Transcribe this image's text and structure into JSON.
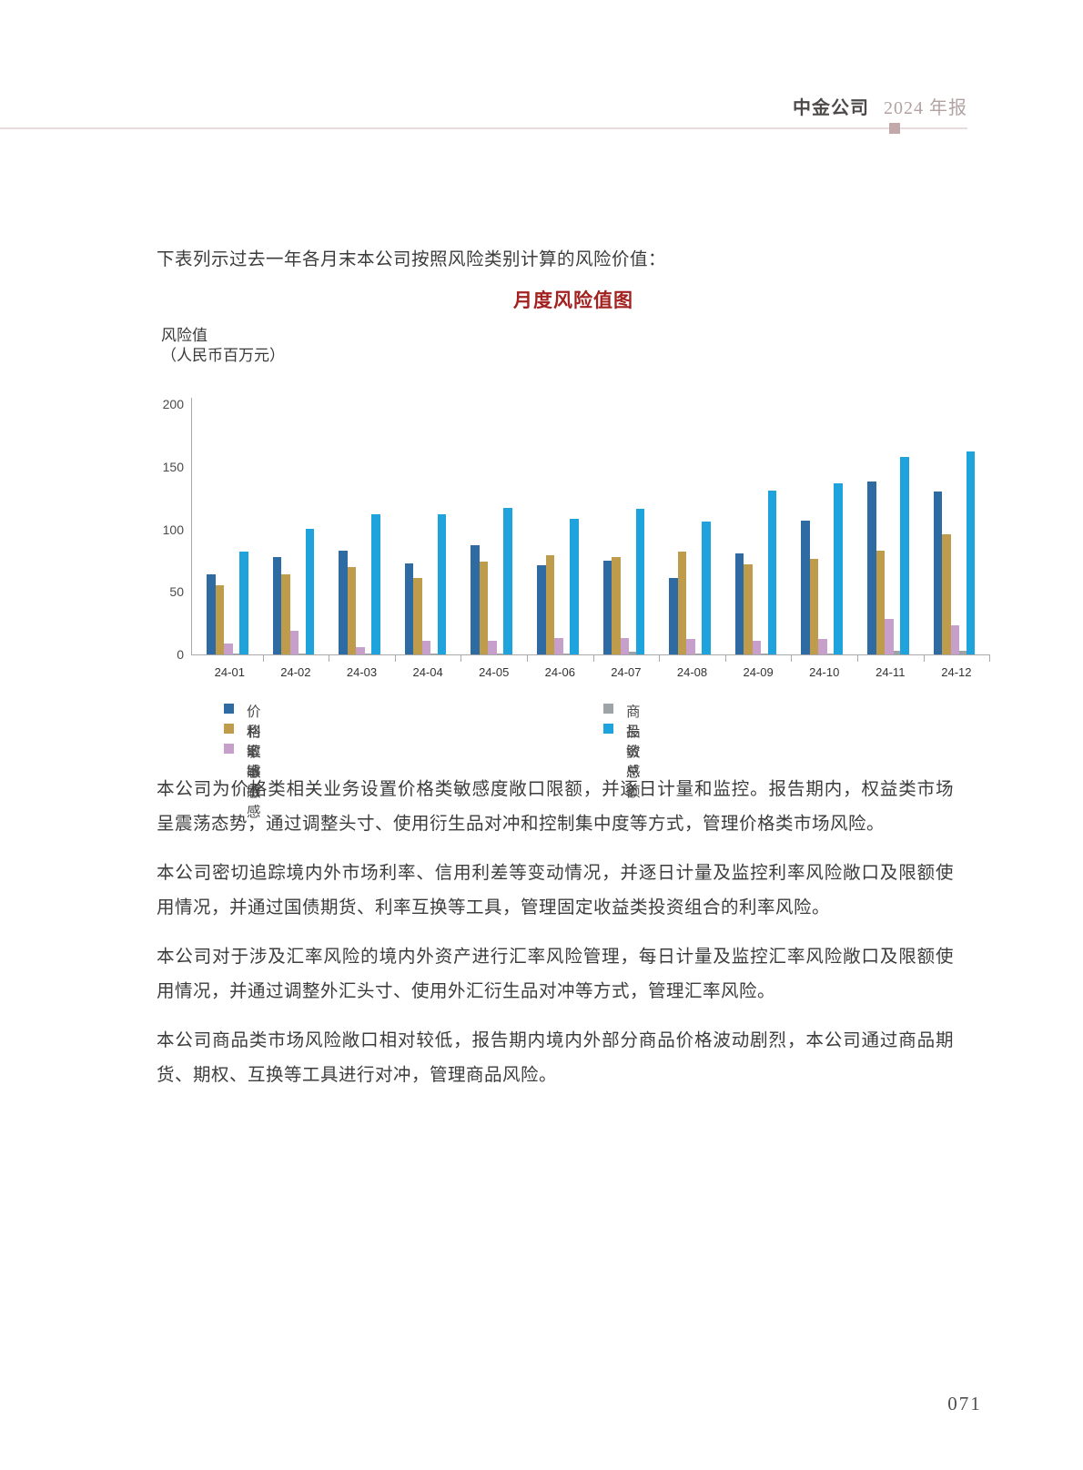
{
  "header": {
    "company": "中金公司",
    "report": "2024 年报"
  },
  "intro": "下表列示过去一年各月末本公司按照风险类别计算的风险价值：",
  "chart_data": {
    "type": "bar",
    "title": "月度风险值图",
    "ylabel_line1": "风险值",
    "ylabel_line2": "（人民币百万元）",
    "ylim": [
      0,
      200
    ],
    "yticks": [
      0,
      50,
      100,
      150,
      200
    ],
    "grid": false,
    "legend_position": "bottom",
    "categories": [
      "24-01",
      "24-02",
      "24-03",
      "24-04",
      "24-05",
      "24-06",
      "24-07",
      "24-08",
      "24-09",
      "24-10",
      "24-11",
      "24-12"
    ],
    "series": [
      {
        "name": "价格敏感",
        "color": "#2e6ba3",
        "values": [
          64,
          78,
          83,
          73,
          87,
          71,
          75,
          61,
          81,
          107,
          138,
          130
        ]
      },
      {
        "name": "利率敏感",
        "color": "#bf9c4b",
        "values": [
          55,
          64,
          70,
          61,
          74,
          79,
          78,
          82,
          72,
          76,
          83,
          96
        ]
      },
      {
        "name": "汇率敏感",
        "color": "#c6a0cb",
        "values": [
          9,
          19,
          6,
          11,
          11,
          13,
          13,
          12,
          11,
          12,
          28,
          23
        ]
      },
      {
        "name": "商品敏感",
        "color": "#9ea3a8",
        "values": [
          1,
          1,
          1,
          1,
          1,
          1,
          2,
          1,
          1,
          1,
          3,
          3
        ]
      },
      {
        "name": "投资总额",
        "color": "#1fa3dc",
        "values": [
          82,
          100,
          112,
          112,
          117,
          108,
          116,
          106,
          131,
          137,
          158,
          162
        ]
      }
    ]
  },
  "paragraphs": [
    "本公司为价格类相关业务设置价格类敏感度敞口限额，并逐日计量和监控。报告期内，权益类市场呈震荡态势，通过调整头寸、使用衍生品对冲和控制集中度等方式，管理价格类市场风险。",
    "本公司密切追踪境内外市场利率、信用利差等变动情况，并逐日计量及监控利率风险敞口及限额使用情况，并通过国债期货、利率互换等工具，管理固定收益类投资组合的利率风险。",
    "本公司对于涉及汇率风险的境内外资产进行汇率风险管理，每日计量及监控汇率风险敞口及限额使用情况，并通过调整外汇头寸、使用外汇衍生品对冲等方式，管理汇率风险。",
    "本公司商品类市场风险敞口相对较低，报告期内境内外部分商品价格波动剧烈，本公司通过商品期货、期权、互换等工具进行对冲，管理商品风险。"
  ],
  "page_number": "071"
}
